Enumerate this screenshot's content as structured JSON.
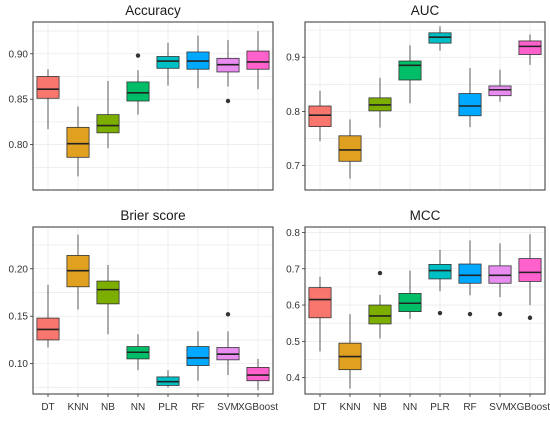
{
  "colors": {
    "DT": "#f8766d",
    "KNN": "#e0a020",
    "NB": "#7cae00",
    "NN": "#00be67",
    "PLR": "#00bfc4",
    "RF": "#00a9ff",
    "SVM": "#e88cf0",
    "XGBoost": "#ff61cc",
    "panel_border": "#333333",
    "grid": "#e5e5e5"
  },
  "chart_data": [
    {
      "type": "box",
      "title": "Accuracy",
      "categories": [
        "DT",
        "KNN",
        "NB",
        "NN",
        "PLR",
        "RF",
        "SVM",
        "XGBoost"
      ],
      "ylim": [
        0.75,
        0.935
      ],
      "yticks": [
        0.8,
        0.85,
        0.9
      ],
      "ytick_labels": [
        "0.80",
        "0.85",
        "0.90"
      ],
      "show_x_labels": false,
      "boxes": [
        {
          "min": 0.817,
          "q1": 0.851,
          "median": 0.861,
          "q3": 0.875,
          "max": 0.883,
          "outliers": []
        },
        {
          "min": 0.765,
          "q1": 0.786,
          "median": 0.801,
          "q3": 0.819,
          "max": 0.842,
          "outliers": []
        },
        {
          "min": 0.796,
          "q1": 0.813,
          "median": 0.821,
          "q3": 0.833,
          "max": 0.87,
          "outliers": []
        },
        {
          "min": 0.833,
          "q1": 0.848,
          "median": 0.857,
          "q3": 0.869,
          "max": 0.882,
          "outliers": [
            0.898
          ]
        },
        {
          "min": 0.865,
          "q1": 0.884,
          "median": 0.892,
          "q3": 0.897,
          "max": 0.912,
          "outliers": []
        },
        {
          "min": 0.862,
          "q1": 0.883,
          "median": 0.892,
          "q3": 0.902,
          "max": 0.92,
          "outliers": []
        },
        {
          "min": 0.864,
          "q1": 0.88,
          "median": 0.888,
          "q3": 0.895,
          "max": 0.915,
          "outliers": [
            0.848
          ]
        },
        {
          "min": 0.861,
          "q1": 0.883,
          "median": 0.891,
          "q3": 0.903,
          "max": 0.925,
          "outliers": []
        }
      ]
    },
    {
      "type": "box",
      "title": "AUC",
      "categories": [
        "DT",
        "KNN",
        "NB",
        "NN",
        "PLR",
        "RF",
        "SVM",
        "XGBoost"
      ],
      "ylim": [
        0.655,
        0.965
      ],
      "yticks": [
        0.7,
        0.8,
        0.9
      ],
      "ytick_labels": [
        "0.7",
        "0.8",
        "0.9"
      ],
      "show_x_labels": false,
      "boxes": [
        {
          "min": 0.745,
          "q1": 0.772,
          "median": 0.793,
          "q3": 0.81,
          "max": 0.838,
          "outliers": []
        },
        {
          "min": 0.676,
          "q1": 0.708,
          "median": 0.729,
          "q3": 0.755,
          "max": 0.785,
          "outliers": []
        },
        {
          "min": 0.77,
          "q1": 0.801,
          "median": 0.812,
          "q3": 0.825,
          "max": 0.862,
          "outliers": []
        },
        {
          "min": 0.815,
          "q1": 0.858,
          "median": 0.885,
          "q3": 0.893,
          "max": 0.922,
          "outliers": []
        },
        {
          "min": 0.912,
          "q1": 0.926,
          "median": 0.937,
          "q3": 0.945,
          "max": 0.957,
          "outliers": []
        },
        {
          "min": 0.771,
          "q1": 0.792,
          "median": 0.81,
          "q3": 0.833,
          "max": 0.88,
          "outliers": []
        },
        {
          "min": 0.818,
          "q1": 0.829,
          "median": 0.84,
          "q3": 0.847,
          "max": 0.877,
          "outliers": []
        },
        {
          "min": 0.886,
          "q1": 0.905,
          "median": 0.92,
          "q3": 0.93,
          "max": 0.942,
          "outliers": []
        }
      ]
    },
    {
      "type": "box",
      "title": "Brier score",
      "categories": [
        "DT",
        "KNN",
        "NB",
        "NN",
        "PLR",
        "RF",
        "SVM",
        "XGBoost"
      ],
      "ylim": [
        0.068,
        0.244
      ],
      "yticks": [
        0.1,
        0.15,
        0.2
      ],
      "ytick_labels": [
        "0.10",
        "0.15",
        "0.20"
      ],
      "show_x_labels": true,
      "boxes": [
        {
          "min": 0.117,
          "q1": 0.125,
          "median": 0.136,
          "q3": 0.148,
          "max": 0.183,
          "outliers": []
        },
        {
          "min": 0.157,
          "q1": 0.181,
          "median": 0.198,
          "q3": 0.214,
          "max": 0.236,
          "outliers": []
        },
        {
          "min": 0.131,
          "q1": 0.163,
          "median": 0.178,
          "q3": 0.187,
          "max": 0.204,
          "outliers": []
        },
        {
          "min": 0.093,
          "q1": 0.105,
          "median": 0.112,
          "q3": 0.118,
          "max": 0.131,
          "outliers": []
        },
        {
          "min": 0.075,
          "q1": 0.077,
          "median": 0.081,
          "q3": 0.086,
          "max": 0.093,
          "outliers": []
        },
        {
          "min": 0.082,
          "q1": 0.098,
          "median": 0.106,
          "q3": 0.118,
          "max": 0.134,
          "outliers": []
        },
        {
          "min": 0.088,
          "q1": 0.104,
          "median": 0.11,
          "q3": 0.117,
          "max": 0.134,
          "outliers": [
            0.152
          ]
        },
        {
          "min": 0.072,
          "q1": 0.082,
          "median": 0.088,
          "q3": 0.096,
          "max": 0.105,
          "outliers": []
        }
      ]
    },
    {
      "type": "box",
      "title": "MCC",
      "categories": [
        "DT",
        "KNN",
        "NB",
        "NN",
        "PLR",
        "RF",
        "SVM",
        "XGBoost"
      ],
      "ylim": [
        0.355,
        0.815
      ],
      "yticks": [
        0.4,
        0.5,
        0.6,
        0.7,
        0.8
      ],
      "ytick_labels": [
        "0.4",
        "0.5",
        "0.6",
        "0.7",
        "0.8"
      ],
      "show_x_labels": true,
      "boxes": [
        {
          "min": 0.472,
          "q1": 0.565,
          "median": 0.615,
          "q3": 0.648,
          "max": 0.678,
          "outliers": []
        },
        {
          "min": 0.37,
          "q1": 0.422,
          "median": 0.458,
          "q3": 0.495,
          "max": 0.575,
          "outliers": []
        },
        {
          "min": 0.508,
          "q1": 0.548,
          "median": 0.57,
          "q3": 0.6,
          "max": 0.628,
          "outliers": [
            0.688
          ]
        },
        {
          "min": 0.562,
          "q1": 0.582,
          "median": 0.605,
          "q3": 0.632,
          "max": 0.695,
          "outliers": []
        },
        {
          "min": 0.638,
          "q1": 0.672,
          "median": 0.695,
          "q3": 0.712,
          "max": 0.752,
          "outliers": [
            0.578
          ]
        },
        {
          "min": 0.627,
          "q1": 0.66,
          "median": 0.682,
          "q3": 0.713,
          "max": 0.778,
          "outliers": [
            0.575
          ]
        },
        {
          "min": 0.622,
          "q1": 0.66,
          "median": 0.682,
          "q3": 0.708,
          "max": 0.77,
          "outliers": [
            0.575
          ]
        },
        {
          "min": 0.6,
          "q1": 0.665,
          "median": 0.69,
          "q3": 0.728,
          "max": 0.795,
          "outliers": [
            0.565
          ]
        }
      ]
    }
  ]
}
